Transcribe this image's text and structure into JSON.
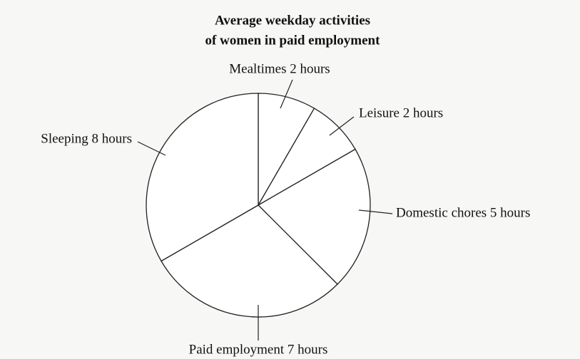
{
  "chart_data": {
    "type": "pie",
    "title": [
      "Average weekday activities",
      "of women in paid employment"
    ],
    "values": [
      2,
      2,
      5,
      7,
      8
    ],
    "value_labels": [
      "Mealtimes 2 hours",
      "Leisure 2 hours",
      "Domestic chores 5 hours",
      "Paid employment 7 hours",
      "Sleeping 8 hours"
    ],
    "color": "#ffffff"
  }
}
